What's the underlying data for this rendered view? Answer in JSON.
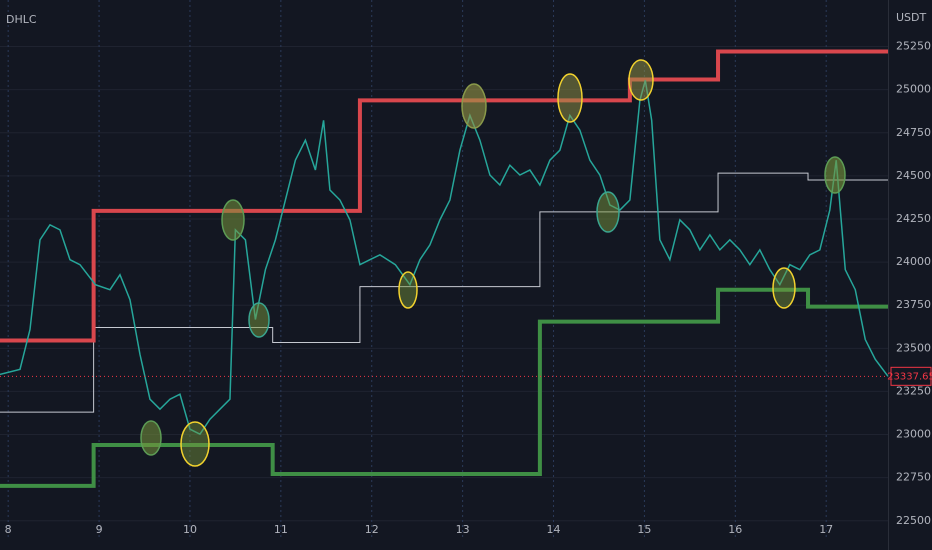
{
  "chart_data": {
    "type": "line",
    "indicator": "DHLC",
    "currency": "USDT",
    "background": "#131722",
    "grid": true,
    "xlim": [
      7.91,
      17.68
    ],
    "xticks": [
      8,
      9,
      10,
      11,
      12,
      13,
      14,
      15,
      16,
      17
    ],
    "ylim": [
      22400,
      25520
    ],
    "yticks": [
      {
        "value": 22500,
        "label": "22500.00"
      },
      {
        "value": 22750,
        "label": "22750.00"
      },
      {
        "value": 23000,
        "label": "23000.00"
      },
      {
        "value": 23250,
        "label": "23250.00"
      },
      {
        "value": 23500,
        "label": "23500.00"
      },
      {
        "value": 23750,
        "label": "23750.00"
      },
      {
        "value": 24000,
        "label": "24000.00"
      },
      {
        "value": 24250,
        "label": "24250.00"
      },
      {
        "value": 24500,
        "label": "24500.00"
      },
      {
        "value": 24750,
        "label": "24750.00"
      },
      {
        "value": 25000,
        "label": "25000.00"
      },
      {
        "value": 25250,
        "label": "25250.00"
      }
    ],
    "last_price": 23337.65,
    "last_price_color": "#f23645",
    "series": [
      {
        "color": "#c6c9d1",
        "width": 1,
        "x": [
          7.91,
          8.94,
          8.94,
          10.91,
          10.91,
          11.87,
          11.87,
          13.85,
          13.85,
          15.81,
          15.81,
          16.8,
          16.8,
          17.68
        ],
        "values": [
          23130,
          23130,
          23621,
          23621,
          23534,
          23534,
          23858,
          23858,
          24291,
          24291,
          24516,
          24516,
          24476,
          24476
        ]
      },
      {
        "color": "#d9474d",
        "width": 4,
        "x": [
          7.91,
          8.94,
          8.94,
          11.87,
          11.87,
          14.84,
          14.84,
          15.81,
          15.81,
          17.68
        ],
        "values": [
          23545,
          23545,
          24297,
          24297,
          24938,
          24938,
          25059,
          25059,
          25221,
          25221
        ]
      },
      {
        "color": "#3f8f45",
        "width": 4,
        "x": [
          7.91,
          8.94,
          8.94,
          10.91,
          10.91,
          13.85,
          13.85,
          15.81,
          15.81,
          16.8,
          16.8,
          17.68
        ],
        "values": [
          22702,
          22702,
          22939,
          22939,
          22771,
          22771,
          23655,
          23655,
          23840,
          23840,
          23742,
          23742
        ]
      },
      {
        "color": "#26a69a",
        "width": 1.5,
        "x": [
          7.91,
          8.13,
          8.24,
          8.35,
          8.46,
          8.57,
          8.68,
          8.79,
          8.96,
          9.12,
          9.23,
          9.34,
          9.45,
          9.56,
          9.67,
          9.78,
          9.89,
          10.0,
          10.11,
          10.22,
          10.33,
          10.44,
          10.5,
          10.61,
          10.72,
          10.83,
          10.94,
          11.05,
          11.16,
          11.27,
          11.38,
          11.47,
          11.54,
          11.65,
          11.76,
          11.87,
          11.98,
          12.09,
          12.26,
          12.42,
          12.53,
          12.64,
          12.75,
          12.86,
          12.97,
          13.08,
          13.19,
          13.3,
          13.41,
          13.52,
          13.63,
          13.74,
          13.85,
          13.96,
          14.07,
          14.18,
          14.29,
          14.4,
          14.51,
          14.62,
          14.73,
          14.84,
          14.95,
          15.01,
          15.08,
          15.17,
          15.28,
          15.39,
          15.5,
          15.61,
          15.72,
          15.83,
          15.94,
          16.05,
          16.16,
          16.27,
          16.38,
          16.49,
          16.6,
          16.71,
          16.82,
          16.93,
          17.04,
          17.11,
          17.21,
          17.32,
          17.43,
          17.54,
          17.68
        ],
        "values": [
          23349,
          23378,
          23609,
          24129,
          24216,
          24187,
          24014,
          23985,
          23869,
          23840,
          23927,
          23782,
          23465,
          23205,
          23147,
          23205,
          23234,
          23031,
          23002,
          23089,
          23147,
          23205,
          24187,
          24129,
          23667,
          23956,
          24129,
          24360,
          24591,
          24707,
          24534,
          24822,
          24418,
          24360,
          24245,
          23985,
          24014,
          24042,
          23985,
          23869,
          24014,
          24100,
          24245,
          24360,
          24649,
          24851,
          24707,
          24505,
          24447,
          24562,
          24505,
          24534,
          24447,
          24591,
          24649,
          24851,
          24765,
          24591,
          24505,
          24331,
          24302,
          24360,
          24938,
          25054,
          24822,
          24129,
          24014,
          24245,
          24187,
          24071,
          24158,
          24071,
          24129,
          24071,
          23985,
          24071,
          23956,
          23869,
          23985,
          23956,
          24042,
          24071,
          24302,
          24591,
          23956,
          23840,
          23551,
          23436,
          23337.65
        ]
      }
    ]
  }
}
